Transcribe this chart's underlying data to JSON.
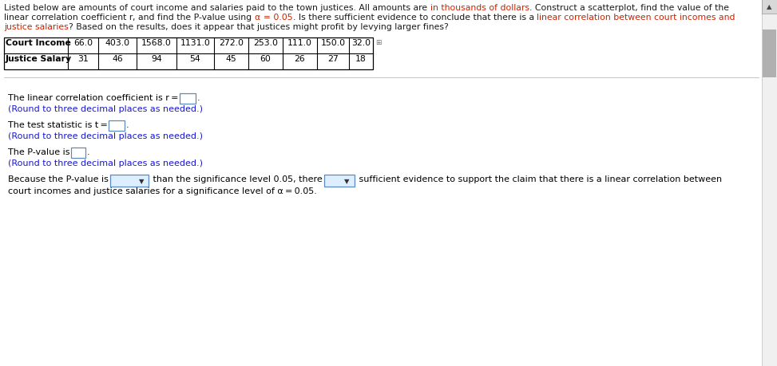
{
  "court_income": [
    "66.0",
    "403.0",
    "1568.0",
    "1131.0",
    "272.0",
    "253.0",
    "111.0",
    "150.0",
    "32.0"
  ],
  "justice_salary": [
    "31",
    "46",
    "94",
    "54",
    "45",
    "60",
    "26",
    "27",
    "18"
  ],
  "bg_color": "#ffffff",
  "fig_w": 9.73,
  "fig_h": 4.6,
  "dpi": 100
}
